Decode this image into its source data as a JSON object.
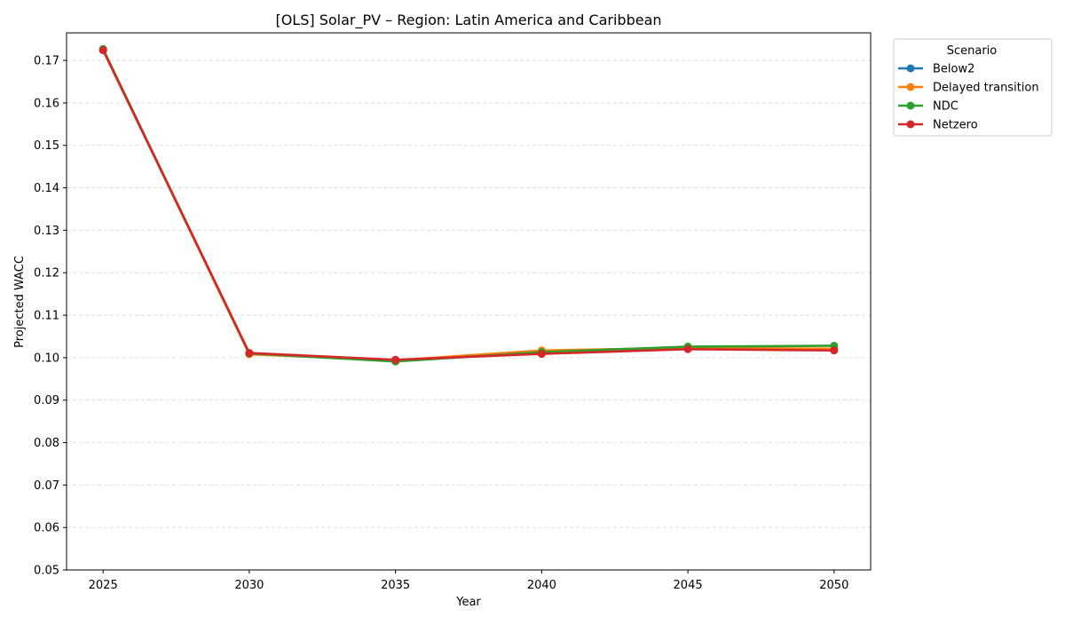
{
  "chart_data": {
    "type": "line",
    "title": "[OLS] Solar_PV – Region: Latin America and Caribbean",
    "xlabel": "Year",
    "ylabel": "Projected WACC",
    "x": [
      2025,
      2030,
      2035,
      2040,
      2045,
      2050
    ],
    "xlim": [
      2023.75,
      2051.25
    ],
    "ylim": [
      0.05,
      0.1765
    ],
    "xticks": [
      2025,
      2030,
      2035,
      2040,
      2045,
      2050
    ],
    "yticks": [
      0.05,
      0.06,
      0.07,
      0.08,
      0.09,
      0.1,
      0.11,
      0.12,
      0.13,
      0.14,
      0.15,
      0.16,
      0.17
    ],
    "ytick_labels": [
      "0.05",
      "0.06",
      "0.07",
      "0.08",
      "0.09",
      "0.10",
      "0.11",
      "0.12",
      "0.13",
      "0.14",
      "0.15",
      "0.16",
      "0.17"
    ],
    "grid": "y-dashed",
    "legend": {
      "title": "Scenario",
      "placement": "outside-top-right"
    },
    "series": [
      {
        "name": "Below2",
        "color": "#1f77b4",
        "values": [
          0.1725,
          0.101,
          0.0994,
          0.1012,
          0.1021,
          0.1019
        ]
      },
      {
        "name": "Delayed transition",
        "color": "#ff7f0e",
        "values": [
          0.1725,
          0.1008,
          0.0994,
          0.1017,
          0.1023,
          0.1021
        ]
      },
      {
        "name": "NDC",
        "color": "#2ca02c",
        "values": [
          0.1727,
          0.101,
          0.0991,
          0.1013,
          0.1026,
          0.1028
        ]
      },
      {
        "name": "Netzero",
        "color": "#d62728",
        "values": [
          0.1724,
          0.1011,
          0.0995,
          0.1009,
          0.102,
          0.1017
        ]
      }
    ]
  }
}
